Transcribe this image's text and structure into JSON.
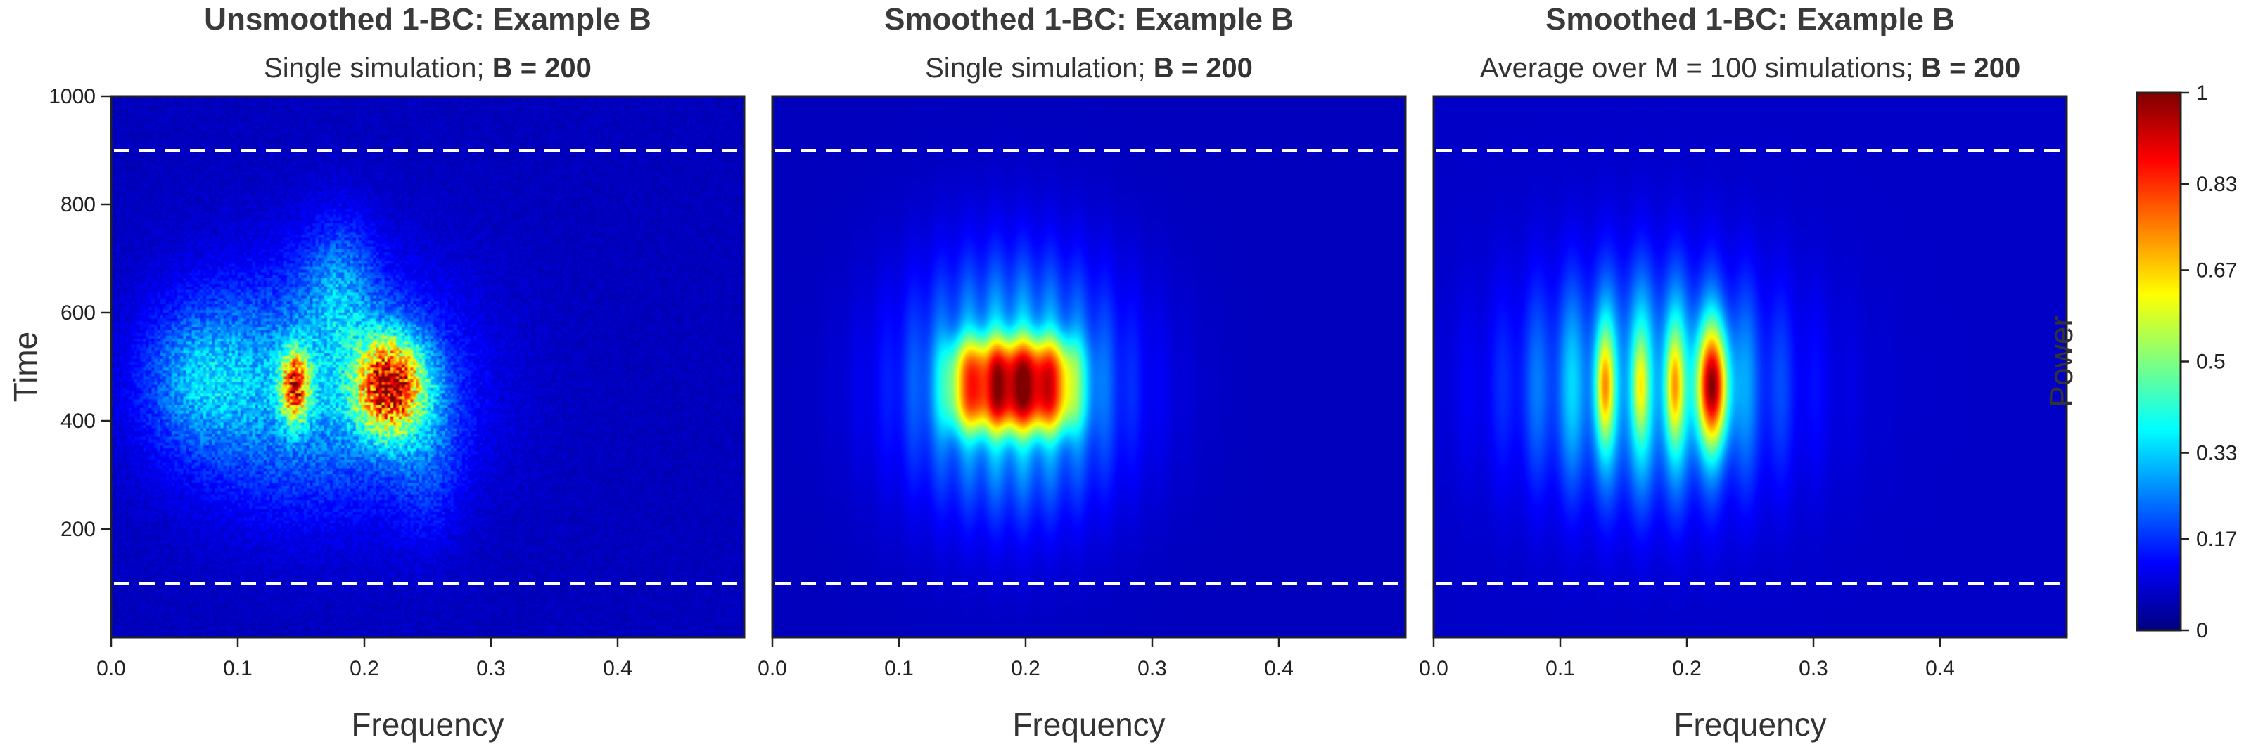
{
  "chart_data": [
    {
      "type": "heatmap",
      "title": "Unsmoothed 1-BC: Example B",
      "subtitle_prefix": "Single simulation; ",
      "subtitle_bold": "B = 200",
      "xlabel": "Frequency",
      "ylabel": "Time",
      "xlim": [
        0,
        0.5
      ],
      "ylim": [
        0,
        1000
      ],
      "xticks": [
        "0.0",
        "0.1",
        "0.2",
        "0.3",
        "0.4"
      ],
      "yticks": [
        "200",
        "400",
        "600",
        "800",
        "1000"
      ],
      "reference_lines_time": [
        100,
        900
      ],
      "texture": "noisy",
      "peaks": [
        {
          "freq": 0.145,
          "time": 465,
          "power": 0.85
        },
        {
          "freq": 0.22,
          "time": 465,
          "power": 1.0
        }
      ]
    },
    {
      "type": "heatmap",
      "title": "Smoothed 1-BC: Example B",
      "subtitle_prefix": "Single simulation; ",
      "subtitle_bold": "B = 200",
      "xlabel": "Frequency",
      "ylabel": "",
      "xlim": [
        0,
        0.5
      ],
      "ylim": [
        0,
        1000
      ],
      "xticks": [
        "0.0",
        "0.1",
        "0.2",
        "0.3",
        "0.4"
      ],
      "reference_lines_time": [
        100,
        900
      ],
      "texture": "smooth",
      "peaks": [
        {
          "freq": 0.15,
          "time": 465,
          "power": 1.0
        },
        {
          "freq": 0.19,
          "time": 465,
          "power": 1.0
        },
        {
          "freq": 0.225,
          "time": 465,
          "power": 1.0
        }
      ]
    },
    {
      "type": "heatmap",
      "title": "Smoothed 1-BC: Example B",
      "subtitle_prefix": "Average over M = 100 simulations; ",
      "subtitle_bold": "B = 200",
      "xlabel": "Frequency",
      "ylabel": "",
      "xlim": [
        0,
        0.5
      ],
      "ylim": [
        0,
        1000
      ],
      "xticks": [
        "0.0",
        "0.1",
        "0.2",
        "0.3",
        "0.4"
      ],
      "reference_lines_time": [
        100,
        900
      ],
      "texture": "striped",
      "peaks": [
        {
          "freq": 0.135,
          "time": 465,
          "power": 0.75
        },
        {
          "freq": 0.19,
          "time": 465,
          "power": 0.72
        },
        {
          "freq": 0.22,
          "time": 465,
          "power": 1.0
        }
      ]
    }
  ],
  "colorbar": {
    "label": "Power",
    "range": [
      0,
      1
    ],
    "ticks": [
      "0",
      "0.17",
      "0.33",
      "0.5",
      "0.67",
      "0.83",
      "1"
    ],
    "colors": [
      "#00007f",
      "#0000ff",
      "#007fff",
      "#00ffff",
      "#7fff7f",
      "#ffff00",
      "#ff7f00",
      "#ff0000",
      "#7f0000"
    ]
  }
}
